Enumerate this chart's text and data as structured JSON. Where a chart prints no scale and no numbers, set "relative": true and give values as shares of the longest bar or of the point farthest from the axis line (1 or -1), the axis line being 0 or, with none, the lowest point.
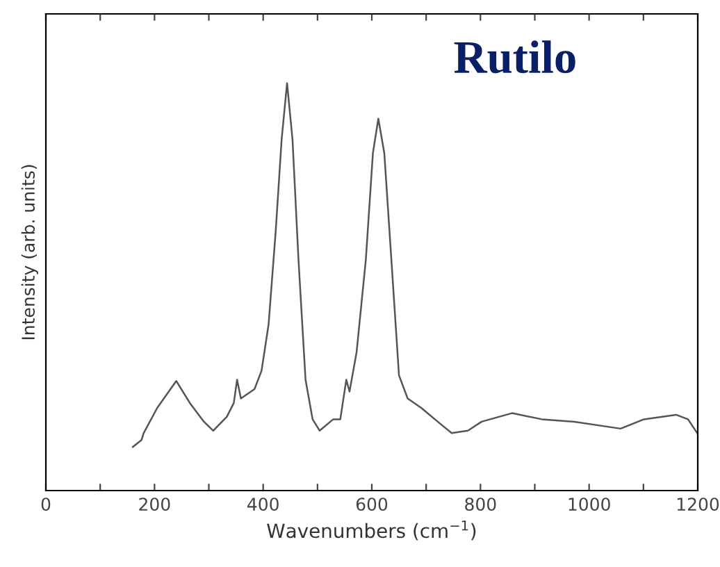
{
  "chart_data": {
    "type": "line",
    "title": "Rutilo",
    "xlabel": "Wavenumbers (cm$^{−1}$)",
    "ylabel": "Intensity (arb. units)",
    "relative": true,
    "xlim": [
      0,
      1200
    ],
    "xticks": [
      0,
      {
        "value": 100,
        "label": null
      },
      200,
      {
        "value": 300,
        "label": null
      },
      400,
      {
        "value": 500,
        "label": null
      },
      600,
      {
        "value": 700,
        "label": null
      },
      800,
      {
        "value": 900,
        "label": null
      },
      1000,
      {
        "value": 1100,
        "label": null
      },
      1200
    ],
    "grid": false,
    "marker": "none",
    "line_style": "solid",
    "series": [
      {
        "color": "#555555",
        "x": [
          160,
          176,
          180,
          205,
          240,
          265,
          291,
          308,
          333,
          346,
          352,
          359,
          384,
          397,
          410,
          423,
          434,
          444,
          454,
          465,
          478,
          491,
          504,
          529,
          542,
          553,
          559,
          572,
          589,
          602,
          612,
          623,
          636,
          650,
          666,
          691,
          726,
          747,
          777,
          802,
          858,
          913,
          973,
          1058,
          1101,
          1160,
          1182,
          1199
        ],
        "values": [
          0.107,
          0.124,
          0.141,
          0.203,
          0.269,
          0.215,
          0.169,
          0.147,
          0.181,
          0.215,
          0.272,
          0.226,
          0.249,
          0.294,
          0.408,
          0.635,
          0.862,
          1,
          0.862,
          0.567,
          0.272,
          0.175,
          0.147,
          0.175,
          0.175,
          0.272,
          0.243,
          0.34,
          0.567,
          0.828,
          0.913,
          0.828,
          0.567,
          0.283,
          0.226,
          0.203,
          0.164,
          0.141,
          0.147,
          0.169,
          0.19,
          0.175,
          0.169,
          0.152,
          0.175,
          0.186,
          0.175,
          0.141
        ]
      }
    ]
  }
}
